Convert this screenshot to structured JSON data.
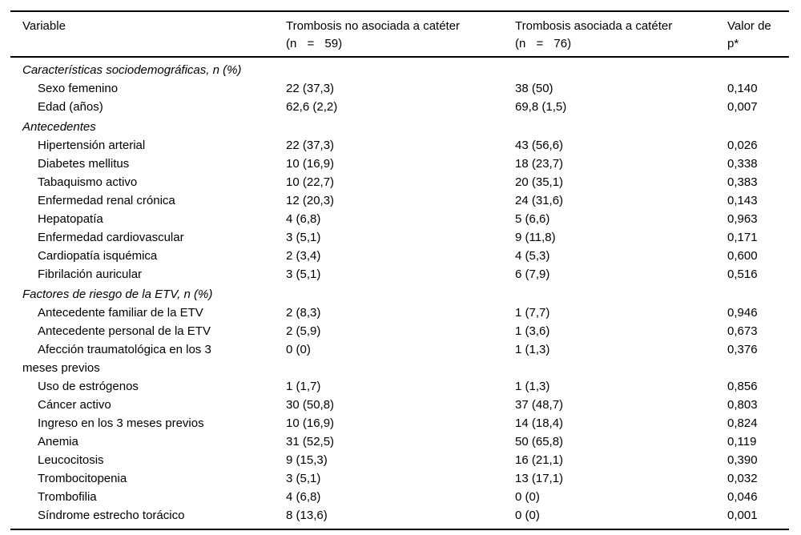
{
  "page": {
    "background": "#ffffff",
    "text_color": "#000000",
    "rule_color": "#000000"
  },
  "table": {
    "header": {
      "col1": {
        "label": "Variable"
      },
      "col2": {
        "label": "Trombosis no asociada a catéter",
        "sublabel": "(n = 59)"
      },
      "col3": {
        "label": "Trombosis asociada a catéter",
        "sublabel": "(n = 76)"
      },
      "col4": {
        "label": "Valor de",
        "sublabel": "p*"
      }
    },
    "rows": [
      {
        "section": "Características sociodemográficas, n (%)"
      },
      {
        "label": "Sexo femenino",
        "no_cateter": "22 (37,3)",
        "cateter": "38 (50)",
        "p": "0,140"
      },
      {
        "label": "Edad (años)",
        "no_cateter": "62,6 (2,2)",
        "cateter": "69,8 (1,5)",
        "p": "0,007"
      },
      {
        "section": "Antecedentes"
      },
      {
        "label": "Hipertensión arterial",
        "no_cateter": "22 (37,3)",
        "cateter": "43 (56,6)",
        "p": "0,026"
      },
      {
        "label": "Diabetes mellitus",
        "no_cateter": "10 (16,9)",
        "cateter": "18 (23,7)",
        "p": "0,338"
      },
      {
        "label": "Tabaquismo activo",
        "no_cateter": "10 (22,7)",
        "cateter": "20 (35,1)",
        "p": "0,383"
      },
      {
        "label": "Enfermedad renal crónica",
        "no_cateter": "12 (20,3)",
        "cateter": "24 (31,6)",
        "p": "0,143"
      },
      {
        "label": "Hepatopatía",
        "no_cateter": "4 (6,8)",
        "cateter": "5 (6,6)",
        "p": "0,963"
      },
      {
        "label": "Enfermedad cardiovascular",
        "no_cateter": "3 (5,1)",
        "cateter": "9 (11,8)",
        "p": "0,171"
      },
      {
        "label": "Cardiopatía isquémica",
        "no_cateter": "2 (3,4)",
        "cateter": "4 (5,3)",
        "p": "0,600"
      },
      {
        "label": "Fibrilación auricular",
        "no_cateter": "3 (5,1)",
        "cateter": "6 (7,9)",
        "p": "0,516"
      },
      {
        "section": "Factores de riesgo de la ETV, n (%)"
      },
      {
        "label": "Antecedente familiar de la ETV",
        "no_cateter": "2 (8,3)",
        "cateter": "1 (7,7)",
        "p": "0,946"
      },
      {
        "label": "Antecedente personal de la ETV",
        "no_cateter": "2 (5,9)",
        "cateter": "1 (3,6)",
        "p": "0,673"
      },
      {
        "label": "Afección traumatológica en los 3",
        "label2": "meses previos",
        "no_cateter": "0 (0)",
        "cateter": "1 (1,3)",
        "p": "0,376"
      },
      {
        "label": "Uso de estrógenos",
        "no_cateter": "1 (1,7)",
        "cateter": "1 (1,3)",
        "p": "0,856"
      },
      {
        "label": "Cáncer activo",
        "no_cateter": "30 (50,8)",
        "cateter": "37 (48,7)",
        "p": "0,803"
      },
      {
        "label": "Ingreso en los 3 meses previos",
        "no_cateter": "10 (16,9)",
        "cateter": "14 (18,4)",
        "p": "0,824"
      },
      {
        "label": "Anemia",
        "no_cateter": "31 (52,5)",
        "cateter": "50 (65,8)",
        "p": "0,119"
      },
      {
        "label": "Leucocitosis",
        "no_cateter": "9 (15,3)",
        "cateter": "16 (21,1)",
        "p": "0,390"
      },
      {
        "label": "Trombocitopenia",
        "no_cateter": "3 (5,1)",
        "cateter": "13 (17,1)",
        "p": "0,032"
      },
      {
        "label": "Trombofilia",
        "no_cateter": "4 (6,8)",
        "cateter": "0 (0)",
        "p": "0,046"
      },
      {
        "label": "Síndrome estrecho torácico",
        "no_cateter": "8 (13,6)",
        "cateter": "0 (0)",
        "p": "0,001"
      }
    ]
  }
}
